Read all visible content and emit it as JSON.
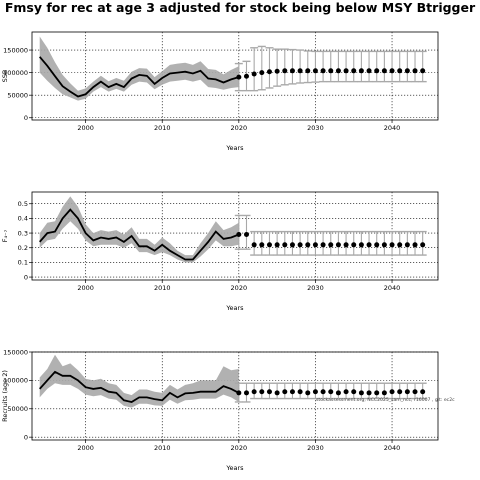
{
  "title": "Fmsy for rec at age 3 adjusted for stock being below MSY Btrigger",
  "annotation": "stockassessment.org, NCC2025_sam_ncc, r16007 , git: ec2c",
  "colors": {
    "line": "#000000",
    "band": "#a9a9a9",
    "grid": "#000000",
    "forecast_interval": "#a9a9a9"
  },
  "chart_data": [
    {
      "type": "line",
      "xlabel": "Years",
      "ylabel": "SSB",
      "xlim": [
        1993,
        2046
      ],
      "ylim": [
        -5000,
        190000
      ],
      "xticks": [
        2000,
        2010,
        2020,
        2030,
        2040
      ],
      "yticks": [
        0,
        50000,
        100000,
        150000
      ],
      "grid": true,
      "history": {
        "x": [
          1994,
          1995,
          1996,
          1997,
          1998,
          1999,
          2000,
          2001,
          2002,
          2003,
          2004,
          2005,
          2006,
          2007,
          2008,
          2009,
          2010,
          2011,
          2012,
          2013,
          2014,
          2015,
          2016,
          2017,
          2018,
          2019,
          2020
        ],
        "y": [
          135000,
          115000,
          92000,
          70000,
          58000,
          47000,
          52000,
          68000,
          80000,
          68000,
          75000,
          68000,
          87000,
          95000,
          93000,
          75000,
          88000,
          98000,
          100000,
          102000,
          98000,
          104000,
          87000,
          85000,
          78000,
          85000,
          90000
        ],
        "lower": [
          100000,
          82000,
          66000,
          52000,
          45000,
          38000,
          42000,
          58000,
          68000,
          58000,
          64000,
          58000,
          73000,
          80000,
          78000,
          63000,
          73000,
          80000,
          82000,
          84000,
          80000,
          84000,
          68000,
          66000,
          62000,
          66000,
          68000
        ],
        "upper": [
          180000,
          155000,
          123000,
          95000,
          76000,
          60000,
          65000,
          80000,
          93000,
          81000,
          88000,
          82000,
          102000,
          110000,
          109000,
          90000,
          103000,
          117000,
          120000,
          122000,
          117000,
          125000,
          108000,
          106000,
          96000,
          106000,
          114000
        ]
      },
      "forecast": {
        "x": [
          2020,
          2021,
          2022,
          2023,
          2024,
          2025,
          2026,
          2027,
          2028,
          2029,
          2030,
          2031,
          2032,
          2033,
          2034,
          2035,
          2036,
          2037,
          2038,
          2039,
          2040,
          2041,
          2042,
          2043,
          2044
        ],
        "y": [
          90000,
          92000,
          97000,
          100000,
          102000,
          103000,
          104000,
          104000,
          104000,
          104000,
          104000,
          104000,
          104000,
          104000,
          104000,
          104000,
          104000,
          104000,
          104000,
          104000,
          104000,
          104000,
          104000,
          104000,
          104000
        ],
        "lower": [
          60000,
          60000,
          60000,
          62000,
          66000,
          70000,
          73000,
          75000,
          77000,
          78000,
          79000,
          80000,
          80000,
          80000,
          80000,
          80000,
          80000,
          80000,
          80000,
          80000,
          80000,
          80000,
          80000,
          80000,
          80000
        ],
        "upper": [
          120000,
          125000,
          155000,
          158000,
          155000,
          152000,
          152000,
          151000,
          150000,
          148000,
          147000,
          147000,
          147000,
          147000,
          147000,
          147000,
          147000,
          147000,
          147000,
          147000,
          147000,
          147000,
          147000,
          147000,
          147000
        ]
      }
    },
    {
      "type": "line",
      "xlabel": "Years",
      "ylabel": "F₄₋₇",
      "xlim": [
        1993,
        2046
      ],
      "ylim": [
        -0.02,
        0.58
      ],
      "xticks": [
        2000,
        2010,
        2020,
        2030,
        2040
      ],
      "yticks": [
        0.0,
        0.1,
        0.2,
        0.3,
        0.4,
        0.5
      ],
      "grid": true,
      "history": {
        "x": [
          1994,
          1995,
          1996,
          1997,
          1998,
          1999,
          2000,
          2001,
          2002,
          2003,
          2004,
          2005,
          2006,
          2007,
          2008,
          2009,
          2010,
          2011,
          2012,
          2013,
          2014,
          2015,
          2016,
          2017,
          2018,
          2019,
          2020
        ],
        "y": [
          0.24,
          0.3,
          0.31,
          0.4,
          0.46,
          0.4,
          0.3,
          0.25,
          0.27,
          0.26,
          0.27,
          0.24,
          0.28,
          0.21,
          0.21,
          0.18,
          0.22,
          0.18,
          0.15,
          0.12,
          0.12,
          0.18,
          0.24,
          0.31,
          0.26,
          0.27,
          0.29
        ],
        "lower": [
          0.2,
          0.25,
          0.26,
          0.33,
          0.38,
          0.33,
          0.25,
          0.21,
          0.22,
          0.22,
          0.22,
          0.2,
          0.23,
          0.17,
          0.17,
          0.15,
          0.17,
          0.15,
          0.12,
          0.1,
          0.1,
          0.14,
          0.19,
          0.25,
          0.21,
          0.21,
          0.22
        ],
        "upper": [
          0.3,
          0.37,
          0.38,
          0.48,
          0.55,
          0.48,
          0.36,
          0.3,
          0.32,
          0.31,
          0.32,
          0.29,
          0.34,
          0.26,
          0.26,
          0.22,
          0.27,
          0.23,
          0.18,
          0.15,
          0.15,
          0.23,
          0.3,
          0.38,
          0.32,
          0.34,
          0.37
        ]
      },
      "forecast": {
        "x": [
          2020,
          2021,
          2022,
          2023,
          2024,
          2025,
          2026,
          2027,
          2028,
          2029,
          2030,
          2031,
          2032,
          2033,
          2034,
          2035,
          2036,
          2037,
          2038,
          2039,
          2040,
          2041,
          2042,
          2043,
          2044
        ],
        "y": [
          0.29,
          0.29,
          0.22,
          0.22,
          0.22,
          0.22,
          0.22,
          0.22,
          0.22,
          0.22,
          0.22,
          0.22,
          0.22,
          0.22,
          0.22,
          0.22,
          0.22,
          0.22,
          0.22,
          0.22,
          0.22,
          0.22,
          0.22,
          0.22,
          0.22
        ],
        "lower": [
          0.19,
          0.19,
          0.15,
          0.15,
          0.15,
          0.15,
          0.15,
          0.15,
          0.15,
          0.15,
          0.15,
          0.15,
          0.15,
          0.15,
          0.15,
          0.15,
          0.15,
          0.15,
          0.15,
          0.15,
          0.15,
          0.15,
          0.15,
          0.15,
          0.15
        ],
        "upper": [
          0.42,
          0.42,
          0.31,
          0.31,
          0.31,
          0.31,
          0.31,
          0.31,
          0.31,
          0.31,
          0.31,
          0.31,
          0.31,
          0.31,
          0.31,
          0.31,
          0.31,
          0.31,
          0.31,
          0.31,
          0.31,
          0.31,
          0.31,
          0.31,
          0.31
        ]
      }
    },
    {
      "type": "line",
      "xlabel": "Years",
      "ylabel": "Recruits (age 2)",
      "xlim": [
        1993,
        2046
      ],
      "ylim": [
        -5000,
        150000
      ],
      "xticks": [
        2000,
        2010,
        2020,
        2030,
        2040
      ],
      "yticks": [
        0,
        50000,
        100000,
        150000
      ],
      "grid": true,
      "history": {
        "x": [
          1994,
          1995,
          1996,
          1997,
          1998,
          1999,
          2000,
          2001,
          2002,
          2003,
          2004,
          2005,
          2006,
          2007,
          2008,
          2009,
          2010,
          2011,
          2012,
          2013,
          2014,
          2015,
          2016,
          2017,
          2018,
          2019,
          2020
        ],
        "y": [
          85000,
          100000,
          115000,
          108000,
          108000,
          100000,
          88000,
          85000,
          87000,
          80000,
          78000,
          65000,
          62000,
          70000,
          70000,
          67000,
          65000,
          78000,
          70000,
          77000,
          78000,
          80000,
          80000,
          80000,
          90000,
          85000,
          78000
        ],
        "lower": [
          70000,
          85000,
          95000,
          92000,
          92000,
          85000,
          75000,
          72000,
          74000,
          68000,
          66000,
          55000,
          52000,
          59000,
          59000,
          56000,
          55000,
          66000,
          59000,
          65000,
          66000,
          68000,
          68000,
          68000,
          75000,
          70000,
          62000
        ],
        "upper": [
          105000,
          120000,
          145000,
          125000,
          130000,
          118000,
          103000,
          100000,
          103000,
          95000,
          92000,
          78000,
          74000,
          84000,
          84000,
          80000,
          78000,
          92000,
          84000,
          92000,
          95000,
          100000,
          100000,
          100000,
          125000,
          118000,
          120000
        ]
      },
      "forecast": {
        "x": [
          2020,
          2021,
          2022,
          2023,
          2024,
          2025,
          2026,
          2027,
          2028,
          2029,
          2030,
          2031,
          2032,
          2033,
          2034,
          2035,
          2036,
          2037,
          2038,
          2039,
          2040,
          2041,
          2042,
          2043,
          2044
        ],
        "y": [
          78000,
          78000,
          80000,
          80000,
          80000,
          78000,
          80000,
          80000,
          80000,
          78000,
          80000,
          80000,
          80000,
          78000,
          80000,
          80000,
          78000,
          78000,
          78000,
          78000,
          80000,
          80000,
          80000,
          80000,
          80000
        ],
        "lower": [
          62000,
          62000,
          68000,
          68000,
          68000,
          68000,
          68000,
          68000,
          68000,
          68000,
          68000,
          68000,
          68000,
          68000,
          68000,
          68000,
          68000,
          68000,
          68000,
          68000,
          68000,
          68000,
          68000,
          68000,
          68000
        ],
        "upper": [
          95000,
          95000,
          95000,
          95000,
          95000,
          95000,
          95000,
          95000,
          95000,
          95000,
          95000,
          95000,
          95000,
          95000,
          95000,
          95000,
          95000,
          95000,
          95000,
          95000,
          95000,
          95000,
          95000,
          95000,
          95000
        ]
      }
    }
  ]
}
